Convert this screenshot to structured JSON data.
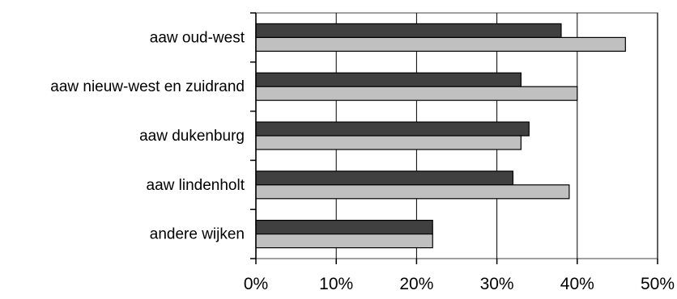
{
  "chart_data": {
    "type": "bar",
    "orientation": "horizontal",
    "categories": [
      "aaw oud-west",
      "aaw nieuw-west en zuidrand",
      "aaw dukenburg",
      "aaw lindenholt",
      "andere wijken"
    ],
    "series": [
      {
        "values": [
          38,
          33,
          34,
          32,
          22
        ],
        "color": "#404040"
      },
      {
        "values": [
          46,
          40,
          33,
          39,
          22
        ],
        "color": "#c0c0c0"
      }
    ],
    "xlim": [
      0,
      50
    ],
    "xticks": [
      0,
      10,
      20,
      30,
      40,
      50
    ],
    "xtick_labels": [
      "0%",
      "10%",
      "20%",
      "30%",
      "40%",
      "50%"
    ],
    "grid": "vertical",
    "legend": "none",
    "title": "",
    "xlabel": "",
    "ylabel": ""
  }
}
